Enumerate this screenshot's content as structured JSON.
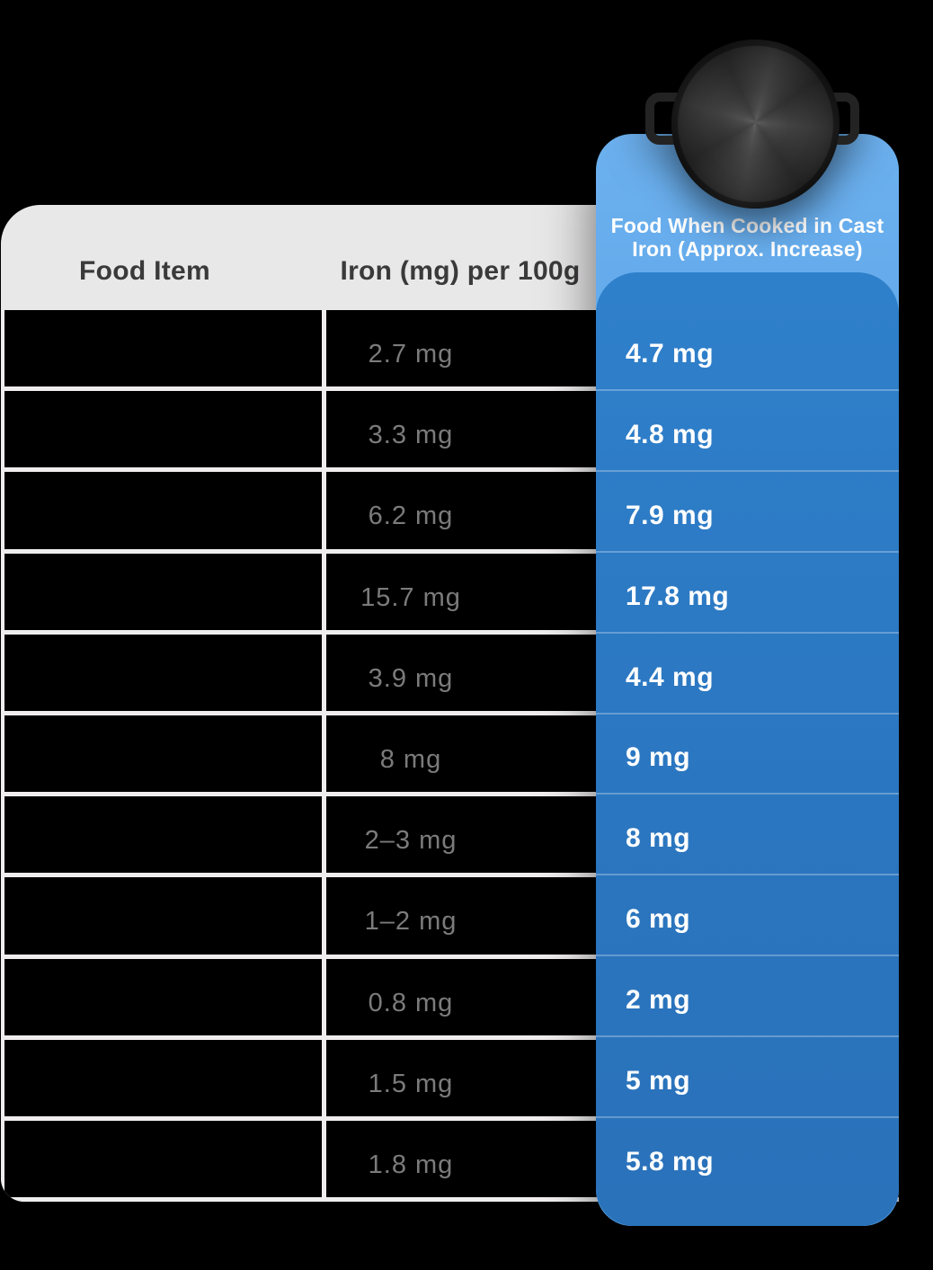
{
  "chart_data": {
    "type": "table",
    "title": "",
    "columns": [
      "Food Item",
      "Iron (mg) per 100g",
      "Food When Cooked in Cast Iron (Approx. Increase)"
    ],
    "rows": [
      {
        "food_item": "",
        "iron_per_100g": "2.7 mg",
        "iron_cast_iron": "4.7 mg"
      },
      {
        "food_item": "",
        "iron_per_100g": "3.3 mg",
        "iron_cast_iron": "4.8 mg"
      },
      {
        "food_item": "",
        "iron_per_100g": "6.2 mg",
        "iron_cast_iron": "7.9 mg"
      },
      {
        "food_item": "",
        "iron_per_100g": "15.7 mg",
        "iron_cast_iron": "17.8 mg"
      },
      {
        "food_item": "",
        "iron_per_100g": "3.9 mg",
        "iron_cast_iron": "4.4 mg"
      },
      {
        "food_item": "",
        "iron_per_100g": "8 mg",
        "iron_cast_iron": "9 mg"
      },
      {
        "food_item": "",
        "iron_per_100g": "2–3 mg",
        "iron_cast_iron": "8 mg"
      },
      {
        "food_item": "",
        "iron_per_100g": "1–2 mg",
        "iron_cast_iron": "6 mg"
      },
      {
        "food_item": "",
        "iron_per_100g": "0.8 mg",
        "iron_cast_iron": "2 mg"
      },
      {
        "food_item": "",
        "iron_per_100g": "1.5 mg",
        "iron_cast_iron": "5 mg"
      },
      {
        "food_item": "",
        "iron_per_100g": "1.8 mg",
        "iron_cast_iron": "5.8 mg"
      }
    ],
    "layout": "third column rendered as raised blue panel with cast-iron pan illustration on top"
  },
  "icons": {
    "pan": "cast-iron-pan"
  },
  "colors": {
    "background": "#000000",
    "grid_white": "#efedee",
    "header_gray": "#e9e8e9",
    "header_text": "#3a3a3a",
    "value_gray": "#7b7b7b",
    "light_blue": "#5ea7ea",
    "dark_blue_top": "#2f80cb",
    "dark_blue_bottom": "#2a72ba",
    "panel_text": "#ffffff"
  }
}
